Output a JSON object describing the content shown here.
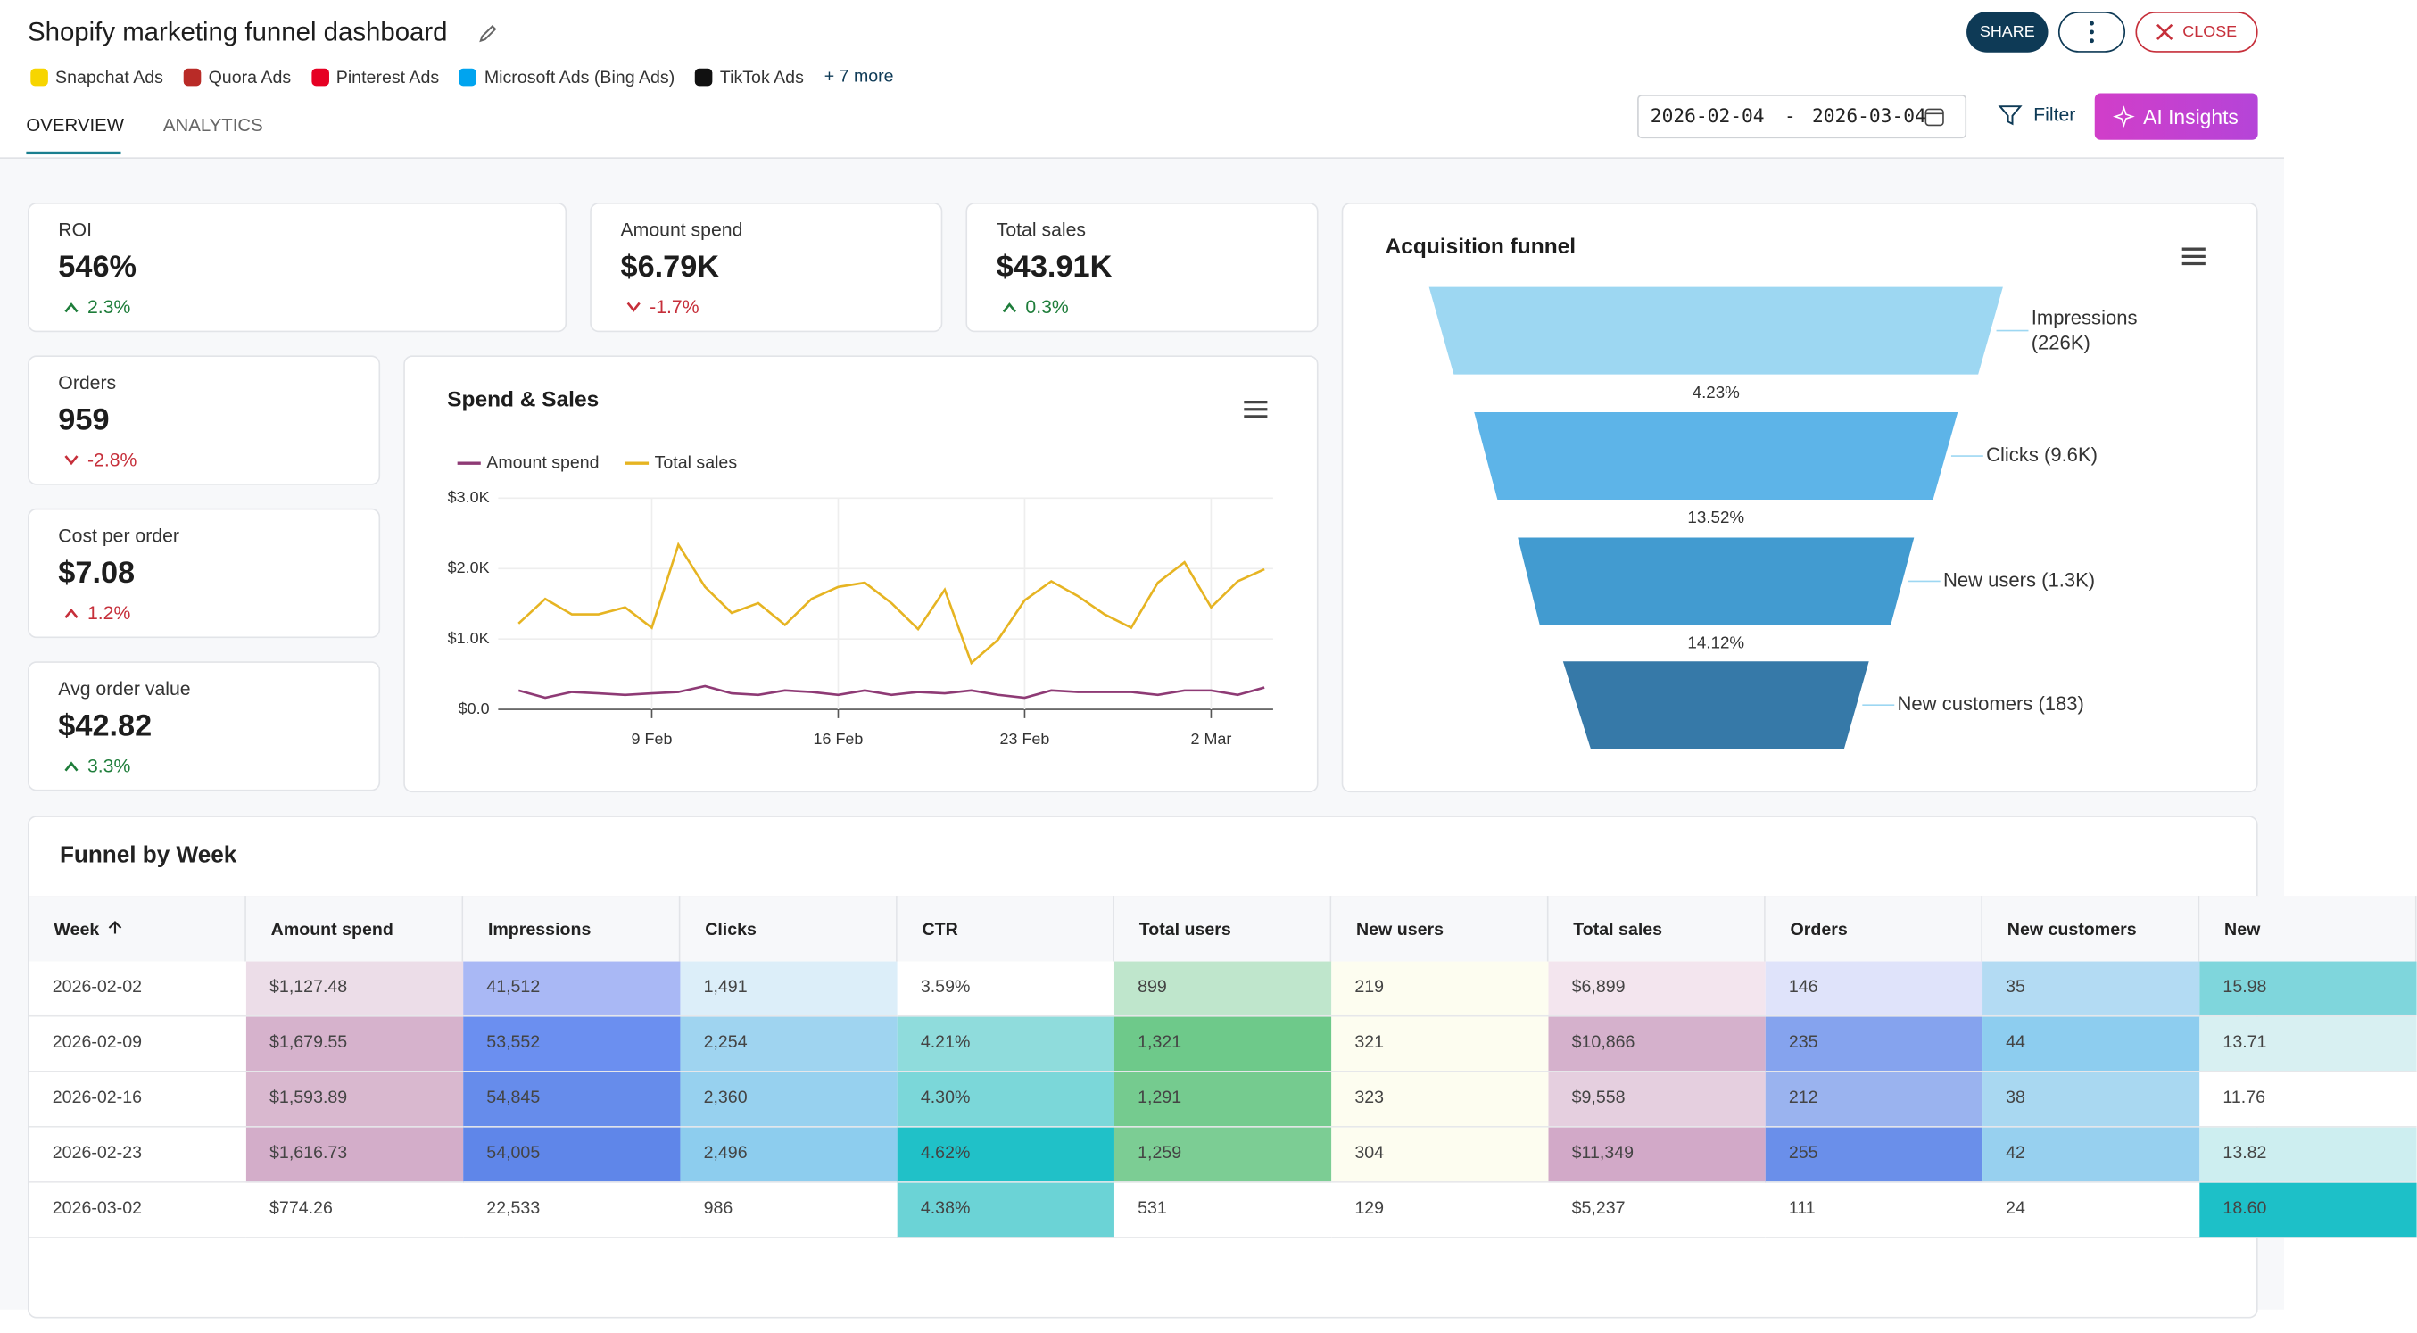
{
  "header": {
    "title": "Shopify marketing funnel dashboard",
    "sources": [
      "Snapchat Ads",
      "Quora Ads",
      "Pinterest Ads",
      "Microsoft Ads (Bing Ads)",
      "TikTok Ads"
    ],
    "more": "+ 7 more",
    "tabs": [
      "OVERVIEW",
      "ANALYTICS"
    ],
    "share": "SHARE",
    "close": "CLOSE",
    "filter": "Filter",
    "ai": "AI Insights",
    "date_from": "2026-02-04",
    "date_sep": "-",
    "date_to": "2026-03-04"
  },
  "kpis": [
    {
      "label": "ROI",
      "value": "546%",
      "change": "2.3%",
      "trend": "up",
      "color": "#1e7d3a"
    },
    {
      "label": "Amount spend",
      "value": "$6.79K",
      "change": "-1.7%",
      "trend": "down",
      "color": "#c62f3a"
    },
    {
      "label": "Total sales",
      "value": "$43.91K",
      "change": "0.3%",
      "trend": "up",
      "color": "#1e7d3a"
    },
    {
      "label": "Orders",
      "value": "959",
      "change": "-2.8%",
      "trend": "down",
      "color": "#c62f3a"
    },
    {
      "label": "Cost per order",
      "value": "$7.08",
      "change": "1.2%",
      "trend": "up",
      "color": "#c62f3a"
    },
    {
      "label": "Avg order value",
      "value": "$42.82",
      "change": "3.3%",
      "trend": "up",
      "color": "#1e7d3a"
    }
  ],
  "chart_data": [
    {
      "type": "line",
      "title": "Spend & Sales",
      "x": [
        "4 Feb",
        "5 Feb",
        "6 Feb",
        "7 Feb",
        "8 Feb",
        "9 Feb",
        "10 Feb",
        "11 Feb",
        "12 Feb",
        "13 Feb",
        "14 Feb",
        "15 Feb",
        "16 Feb",
        "17 Feb",
        "18 Feb",
        "19 Feb",
        "20 Feb",
        "21 Feb",
        "22 Feb",
        "23 Feb",
        "24 Feb",
        "25 Feb",
        "26 Feb",
        "27 Feb",
        "28 Feb",
        "1 Mar",
        "2 Mar",
        "3 Mar",
        "4 Mar"
      ],
      "series": [
        {
          "name": "Amount spend",
          "color": "#8e3a75",
          "values": [
            269,
            166,
            248,
            228,
            207,
            228,
            248,
            331,
            228,
            207,
            269,
            248,
            207,
            269,
            207,
            248,
            228,
            269,
            207,
            166,
            269,
            248,
            248,
            248,
            207,
            269,
            269,
            207,
            311
          ]
        },
        {
          "name": "Total sales",
          "color": "#e6b422",
          "values": [
            1220,
            1570,
            1350,
            1350,
            1450,
            1160,
            2340,
            1740,
            1370,
            1510,
            1200,
            1570,
            1740,
            1800,
            1510,
            1140,
            1700,
            660,
            990,
            1550,
            1820,
            1610,
            1350,
            1160,
            1800,
            2090,
            1450,
            1820,
            1990
          ]
        }
      ],
      "ylim": [
        0,
        3000
      ],
      "yticks": [
        {
          "value": 0,
          "label": "$0.0"
        },
        {
          "value": 1000,
          "label": "$1.0K"
        },
        {
          "value": 2000,
          "label": "$2.0K"
        },
        {
          "value": 3000,
          "label": "$3.0K"
        }
      ],
      "xticks": [
        "9 Feb",
        "16 Feb",
        "23 Feb",
        "2 Mar"
      ],
      "grid": true,
      "legend": "top-left"
    },
    {
      "type": "funnel",
      "title": "Acquisition funnel",
      "labels": [
        "Impressions (226K)",
        "Clicks (9.6K)",
        "New users (1.3K)",
        "New customers (183)"
      ],
      "values": [
        226000,
        9600,
        1300,
        183
      ],
      "colors": [
        "#9dd7f2",
        "#5db4e8",
        "#429bd0",
        "#3679a8"
      ],
      "rate_labels": [
        "4.23%",
        "13.52%",
        "14.12%"
      ]
    }
  ],
  "table": {
    "title": "Funnel by Week",
    "columns": [
      "Week",
      "Amount spend",
      "Impressions",
      "Clicks",
      "CTR",
      "Total users",
      "New users",
      "Total sales",
      "Orders",
      "New customers",
      "New"
    ],
    "rows": [
      [
        "2026-02-02",
        "$1,127.48",
        "41,512",
        "1,491",
        "3.59%",
        "899",
        "219",
        "$6,899",
        "146",
        "35",
        "15.98"
      ],
      [
        "2026-02-09",
        "$1,679.55",
        "53,552",
        "2,254",
        "4.21%",
        "1,321",
        "321",
        "$10,866",
        "235",
        "44",
        "13.71"
      ],
      [
        "2026-02-16",
        "$1,593.89",
        "54,845",
        "2,360",
        "4.30%",
        "1,291",
        "323",
        "$9,558",
        "212",
        "38",
        "11.76"
      ],
      [
        "2026-02-23",
        "$1,616.73",
        "54,005",
        "2,496",
        "4.62%",
        "1,259",
        "304",
        "$11,349",
        "255",
        "42",
        "13.82"
      ],
      [
        "2026-03-02",
        "$774.26",
        "22,533",
        "986",
        "4.38%",
        "531",
        "129",
        "$5,237",
        "111",
        "24",
        "18.60"
      ]
    ],
    "colors": [
      [
        "#ffffff",
        "#ecdde8",
        "#a9b8f5",
        "#dceef9",
        "#ffffff",
        "#bfe6cc",
        "#fdfdf0",
        "#f3e5ee",
        "#dfe3fa",
        "#b3dbf3",
        "#7fd6dc"
      ],
      [
        "#ffffff",
        "#d6b2cc",
        "#6b8ff0",
        "#9fd4f0",
        "#8fdcdc",
        "#6ec98a",
        "#fdfdf0",
        "#d5b1cc",
        "#85a3ee",
        "#8dcdef",
        "#d8f0f2"
      ],
      [
        "#ffffff",
        "#d9b8cf",
        "#668ceb",
        "#97d1ef",
        "#7bd7d9",
        "#75cb8f",
        "#fdfdf0",
        "#e5cfdf",
        "#9ab3ef",
        "#a9d8f1",
        "#ffffff"
      ],
      [
        "#ffffff",
        "#d3adc9",
        "#5f86e9",
        "#8dcdee",
        "#20c1c8",
        "#7ccd94",
        "#fdfdf0",
        "#d2a9c8",
        "#6a8fea",
        "#97d0ef",
        "#cdeef0"
      ],
      [
        "#ffffff",
        "#ffffff",
        "#ffffff",
        "#ffffff",
        "#6bd3d6",
        "#ffffff",
        "#ffffff",
        "#ffffff",
        "#ffffff",
        "#ffffff",
        "#1dc0c8"
      ]
    ]
  }
}
